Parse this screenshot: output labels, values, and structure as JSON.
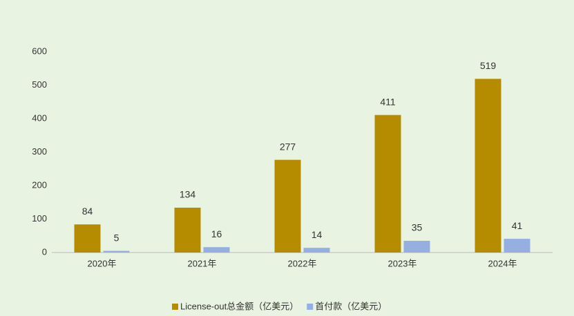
{
  "chart_data": {
    "type": "bar",
    "categories": [
      "2020年",
      "2021年",
      "2022年",
      "2023年",
      "2024年"
    ],
    "series": [
      {
        "name": "License-out总金额（亿美元）",
        "color": "#b58b00",
        "values": [
          84,
          134,
          277,
          411,
          519
        ]
      },
      {
        "name": "首付款（亿美元）",
        "color": "#94afe0",
        "values": [
          5,
          16,
          14,
          35,
          41
        ]
      }
    ],
    "ylim": [
      0,
      600
    ],
    "yticks": [
      0,
      100,
      200,
      300,
      400,
      500,
      600
    ],
    "grid": false,
    "legend": "bottom"
  }
}
